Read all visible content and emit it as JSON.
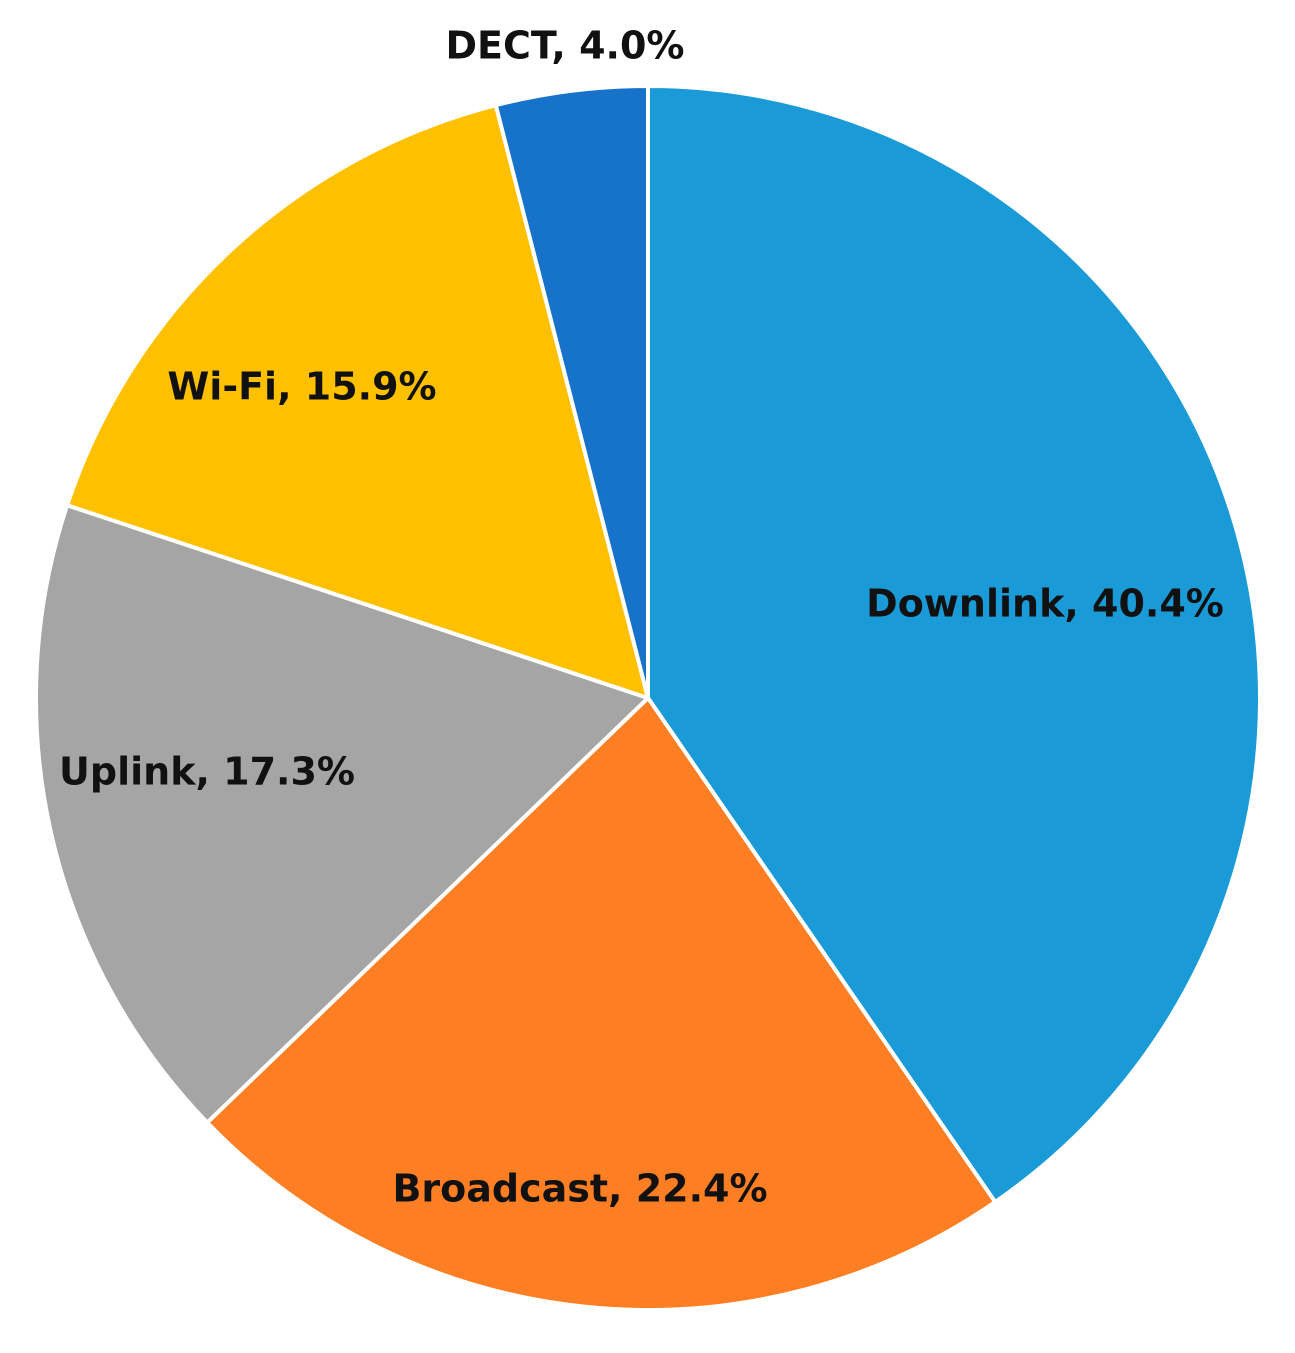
{
  "chart_data": {
    "type": "pie",
    "title": "",
    "start_angle_deg": 0,
    "direction": "clockwise",
    "legend": "none",
    "slices": [
      {
        "label": "Downlink",
        "value": 40.4,
        "display": "Downlink, 40.4%",
        "color": "#1a9bd7"
      },
      {
        "label": "Broadcast",
        "value": 22.4,
        "display": "Broadcast, 22.4%",
        "color": "#fe7f23"
      },
      {
        "label": "Uplink",
        "value": 17.3,
        "display": "Uplink, 17.3%",
        "color": "#a5a5a5"
      },
      {
        "label": "Wi-Fi",
        "value": 15.9,
        "display": "Wi-Fi, 15.9%",
        "color": "#ffc000"
      },
      {
        "label": "DECT",
        "value": 4.0,
        "display": "DECT, 4.0%",
        "color": "#1772c9"
      }
    ]
  }
}
